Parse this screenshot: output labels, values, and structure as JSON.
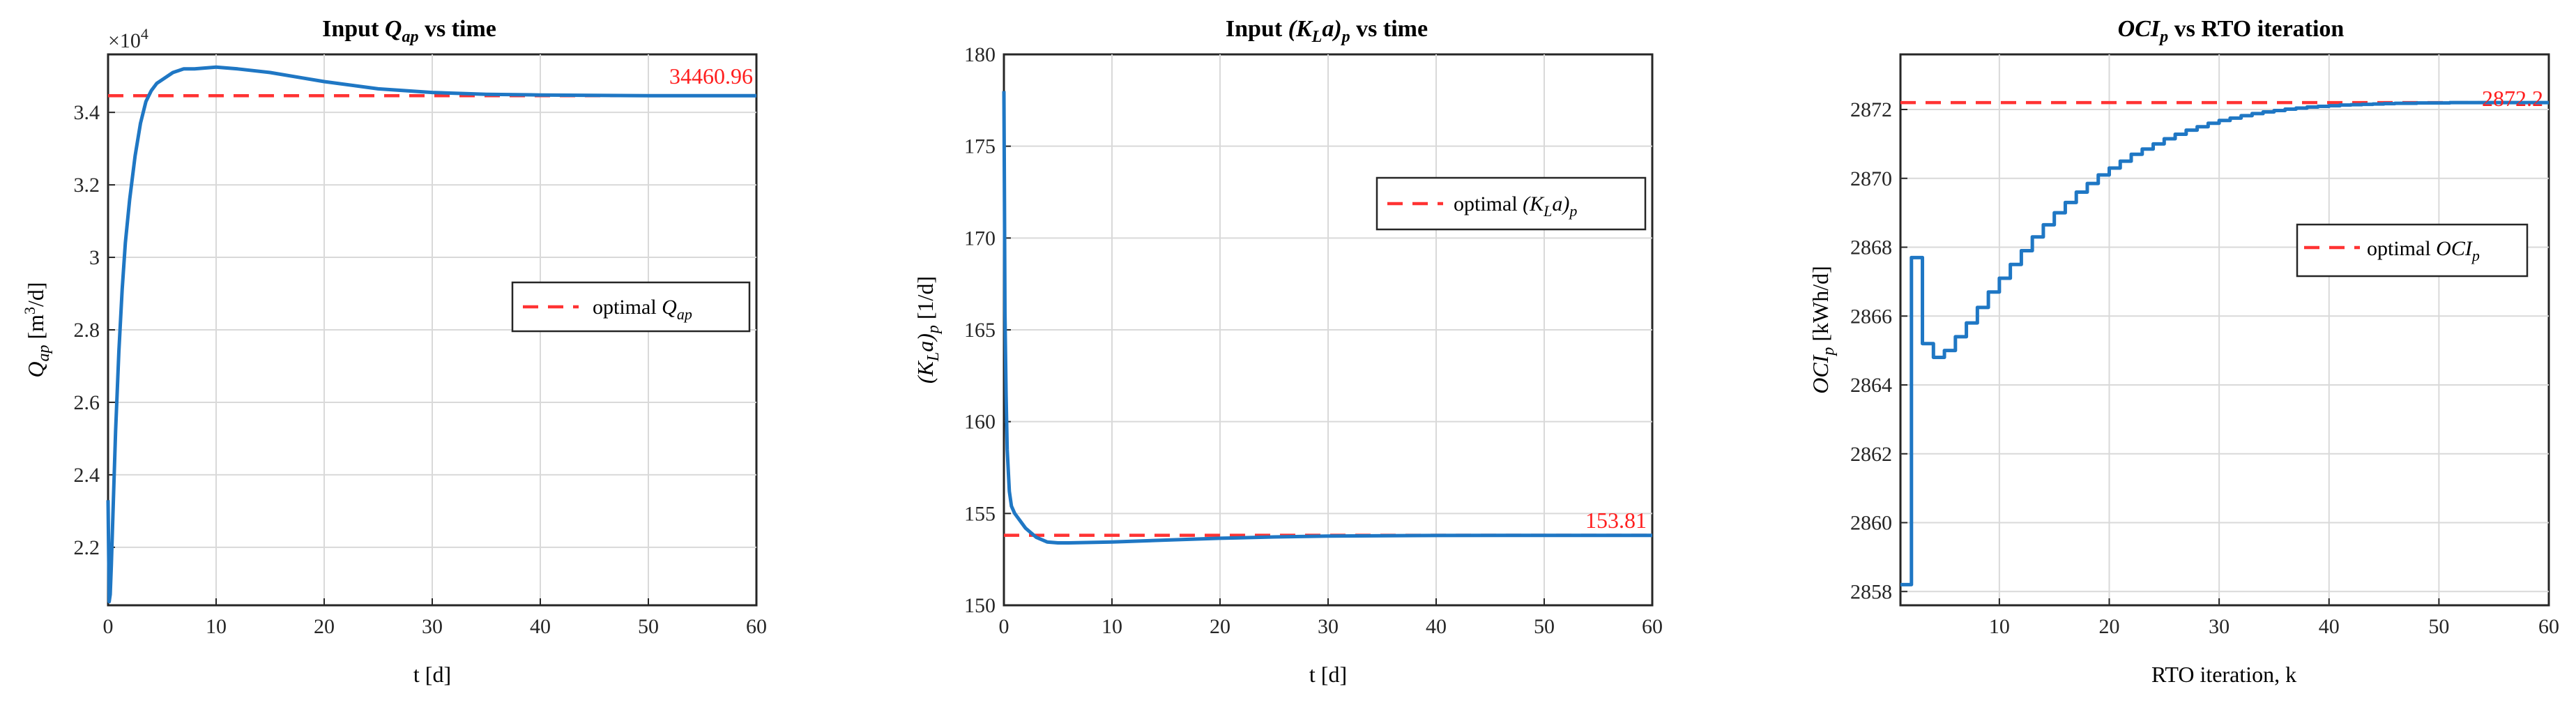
{
  "chart_data": [
    {
      "type": "line",
      "title": {
        "prefix": "Input ",
        "symbol": "Q",
        "subscript": "ap",
        "suffix": " vs time"
      },
      "xlabel": "t [d]",
      "ylabel": {
        "symbol": "Q",
        "subscript": "ap",
        "unit_pre": " [m",
        "unit_sup": "3",
        "unit_post": "/d]"
      },
      "exponent_label": "×10",
      "exponent_power": "4",
      "xlim": [
        0,
        60
      ],
      "ylim": [
        2.04,
        3.56
      ],
      "x_ticks": [
        0,
        10,
        20,
        30,
        40,
        50,
        60
      ],
      "y_ticks": [
        2.2,
        2.4,
        2.6,
        2.8,
        3.0,
        3.2,
        3.4
      ],
      "y_tick_labels": [
        "2.2",
        "2.4",
        "2.6",
        "2.8",
        "3",
        "3.2",
        "3.4"
      ],
      "grid": true,
      "optimal_value": 3.446096,
      "optimal_label": "34460.96",
      "legend": {
        "text": "optimal ",
        "symbol": "Q",
        "subscript": "ap",
        "placement": "center-right"
      },
      "series": [
        {
          "name": "Q_ap",
          "x": [
            0,
            0.1,
            0.2,
            0.3,
            0.5,
            0.7,
            1.0,
            1.3,
            1.6,
            2.0,
            2.5,
            3.0,
            3.5,
            4.0,
            4.5,
            5.0,
            6.0,
            7.0,
            8.0,
            10.0,
            12.0,
            15.0,
            18.0,
            20.0,
            25.0,
            30.0,
            35.0,
            40.0,
            50.0,
            60.0
          ],
          "y": [
            2.33,
            2.05,
            2.07,
            2.15,
            2.34,
            2.52,
            2.74,
            2.91,
            3.04,
            3.16,
            3.28,
            3.37,
            3.43,
            3.46,
            3.48,
            3.49,
            3.51,
            3.52,
            3.52,
            3.525,
            3.52,
            3.51,
            3.495,
            3.485,
            3.465,
            3.455,
            3.45,
            3.448,
            3.446,
            3.446
          ]
        }
      ]
    },
    {
      "type": "line",
      "title": {
        "prefix": "Input ",
        "symbol": "(K",
        "subscript": "L",
        "symbol2": "a)",
        "subscript2": "p",
        "suffix": " vs time"
      },
      "xlabel": "t [d]",
      "ylabel": {
        "symbol": "(K",
        "subscript": "L",
        "symbol2": "a)",
        "subscript2": "p",
        "unit": " [1/d]"
      },
      "xlim": [
        0,
        60
      ],
      "ylim": [
        150,
        180
      ],
      "x_ticks": [
        0,
        10,
        20,
        30,
        40,
        50,
        60
      ],
      "y_ticks": [
        150,
        155,
        160,
        165,
        170,
        175,
        180
      ],
      "y_tick_labels": [
        "150",
        "155",
        "160",
        "165",
        "170",
        "175",
        "180"
      ],
      "grid": true,
      "optimal_value": 153.81,
      "optimal_label": "153.81",
      "legend": {
        "text": "optimal ",
        "symbol": "(K",
        "subscript": "L",
        "symbol2": "a)",
        "subscript2": "p",
        "placement": "top-right"
      },
      "series": [
        {
          "name": "(K_L a)_p",
          "x": [
            0,
            0.05,
            0.1,
            0.2,
            0.3,
            0.5,
            0.7,
            1.0,
            1.5,
            2.0,
            3.0,
            4.0,
            5.0,
            6.0,
            8.0,
            10.0,
            15.0,
            20.0,
            25.0,
            30.0,
            40.0,
            50.0,
            60.0
          ],
          "y": [
            178,
            172,
            166,
            161.5,
            158.5,
            156.2,
            155.4,
            155.0,
            154.6,
            154.2,
            153.7,
            153.45,
            153.4,
            153.4,
            153.42,
            153.45,
            153.55,
            153.65,
            153.72,
            153.77,
            153.8,
            153.81,
            153.81
          ]
        }
      ]
    },
    {
      "type": "line",
      "title": {
        "symbol": "OCI",
        "subscript": "p",
        "suffix": " vs RTO iteration"
      },
      "xlabel": "RTO iteration, k",
      "ylabel": {
        "symbol": "OCI",
        "subscript": "p",
        "unit": " [kWh/d]"
      },
      "xlim": [
        1,
        60
      ],
      "ylim": [
        2857.6,
        2873.6
      ],
      "x_ticks": [
        10,
        20,
        30,
        40,
        50,
        60
      ],
      "y_ticks": [
        2858,
        2860,
        2862,
        2864,
        2866,
        2868,
        2870,
        2872
      ],
      "y_tick_labels": [
        "2858",
        "2860",
        "2862",
        "2864",
        "2866",
        "2868",
        "2870",
        "2872"
      ],
      "grid": true,
      "optimal_value": 2872.2,
      "optimal_label": "2872.2",
      "legend": {
        "text": "optimal ",
        "symbol": "OCI",
        "subscript": "p",
        "placement": "upper-right"
      },
      "series": [
        {
          "name": "OCI_p",
          "step": true,
          "x": [
            1,
            2,
            3,
            4,
            5,
            6,
            7,
            8,
            9,
            10,
            11,
            12,
            13,
            14,
            15,
            16,
            17,
            18,
            19,
            20,
            21,
            22,
            23,
            24,
            25,
            26,
            27,
            28,
            29,
            30,
            31,
            32,
            33,
            34,
            35,
            36,
            37,
            38,
            39,
            40,
            41,
            42,
            43,
            44,
            45,
            46,
            47,
            48,
            49,
            50,
            51,
            52,
            53,
            54,
            55,
            56,
            57,
            58,
            59,
            60
          ],
          "y": [
            2858.2,
            2867.7,
            2865.2,
            2864.8,
            2865.0,
            2865.4,
            2865.8,
            2866.25,
            2866.7,
            2867.1,
            2867.5,
            2867.9,
            2868.3,
            2868.65,
            2869.0,
            2869.3,
            2869.6,
            2869.85,
            2870.1,
            2870.3,
            2870.5,
            2870.7,
            2870.85,
            2871.0,
            2871.15,
            2871.28,
            2871.4,
            2871.5,
            2871.6,
            2871.68,
            2871.75,
            2871.82,
            2871.88,
            2871.93,
            2871.97,
            2872.01,
            2872.04,
            2872.07,
            2872.09,
            2872.11,
            2872.13,
            2872.14,
            2872.15,
            2872.16,
            2872.17,
            2872.18,
            2872.18,
            2872.19,
            2872.19,
            2872.19,
            2872.2,
            2872.2,
            2872.2,
            2872.2,
            2872.2,
            2872.2,
            2872.2,
            2872.2,
            2872.2,
            2872.2
          ]
        }
      ]
    }
  ],
  "colors": {
    "series": "#1f77c4",
    "optimal": "#ff3333",
    "annotation": "#ff1f1f",
    "axis": "#262626",
    "grid": "#d9d9d9"
  }
}
